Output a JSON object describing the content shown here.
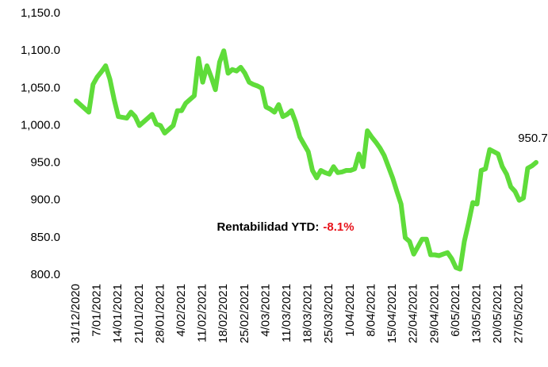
{
  "chart_data": {
    "type": "line",
    "categories": [
      "31/12/2020",
      null,
      null,
      null,
      null,
      "7/01/2021",
      null,
      null,
      null,
      null,
      "14/01/2021",
      null,
      null,
      null,
      null,
      "21/01/2021",
      null,
      null,
      null,
      null,
      "28/01/2021",
      null,
      null,
      null,
      null,
      "4/02/2021",
      null,
      null,
      null,
      null,
      "11/02/2021",
      null,
      null,
      null,
      null,
      "18/02/2021",
      null,
      null,
      null,
      null,
      "25/02/2021",
      null,
      null,
      null,
      null,
      "4/03/2021",
      null,
      null,
      null,
      null,
      "11/03/2021",
      null,
      null,
      null,
      null,
      "18/03/2021",
      null,
      null,
      null,
      null,
      "25/03/2021",
      null,
      null,
      null,
      null,
      "1/04/2021",
      null,
      null,
      null,
      null,
      "8/04/2021",
      null,
      null,
      null,
      null,
      "15/04/2021",
      null,
      null,
      null,
      null,
      "22/04/2021",
      null,
      null,
      null,
      null,
      "29/04/2021",
      null,
      null,
      null,
      null,
      "6/05/2021",
      null,
      null,
      null,
      null,
      "13/05/2021",
      null,
      null,
      null,
      null,
      "20/05/2021",
      null,
      null,
      null,
      null,
      "27/05/2021",
      null,
      null,
      null,
      null
    ],
    "series": [
      {
        "color": "#5fdc3a",
        "values": [
          1033,
          1028,
          1023,
          1018,
          1055,
          1065,
          1072,
          1080,
          1062,
          1035,
          1012,
          1011,
          1010,
          1018,
          1012,
          1000,
          1005,
          1010,
          1015,
          1002,
          1000,
          990,
          995,
          1000,
          1020,
          1020,
          1030,
          1035,
          1040,
          1090,
          1058,
          1080,
          1065,
          1048,
          1085,
          1100,
          1070,
          1075,
          1073,
          1078,
          1070,
          1058,
          1055,
          1053,
          1050,
          1025,
          1022,
          1018,
          1028,
          1012,
          1015,
          1020,
          1005,
          985,
          975,
          965,
          940,
          930,
          940,
          937,
          935,
          945,
          937,
          938,
          940,
          940,
          942,
          962,
          945,
          993,
          985,
          978,
          970,
          960,
          945,
          930,
          912,
          895,
          850,
          845,
          828,
          838,
          848,
          848,
          827,
          827,
          826,
          828,
          830,
          822,
          810,
          808,
          845,
          870,
          897,
          895,
          940,
          942,
          968,
          965,
          962,
          945,
          935,
          918,
          912,
          900,
          903,
          943,
          946,
          950.7
        ]
      }
    ],
    "ylim": [
      800,
      1150
    ],
    "yticks": [
      {
        "value": 800,
        "label": "800.0"
      },
      {
        "value": 850,
        "label": "850.0"
      },
      {
        "value": 900,
        "label": "900.0"
      },
      {
        "value": 950,
        "label": "950.0"
      },
      {
        "value": 1000,
        "label": "1,000.0"
      },
      {
        "value": 1050,
        "label": "1,050.0"
      },
      {
        "value": 1100,
        "label": "1,100.0"
      },
      {
        "value": 1150,
        "label": "1,150.0"
      }
    ],
    "annotation": {
      "text": "Rentabilidad YTD:",
      "highlight": "-8.1%",
      "highlight_color": "#e8131b"
    }
  }
}
